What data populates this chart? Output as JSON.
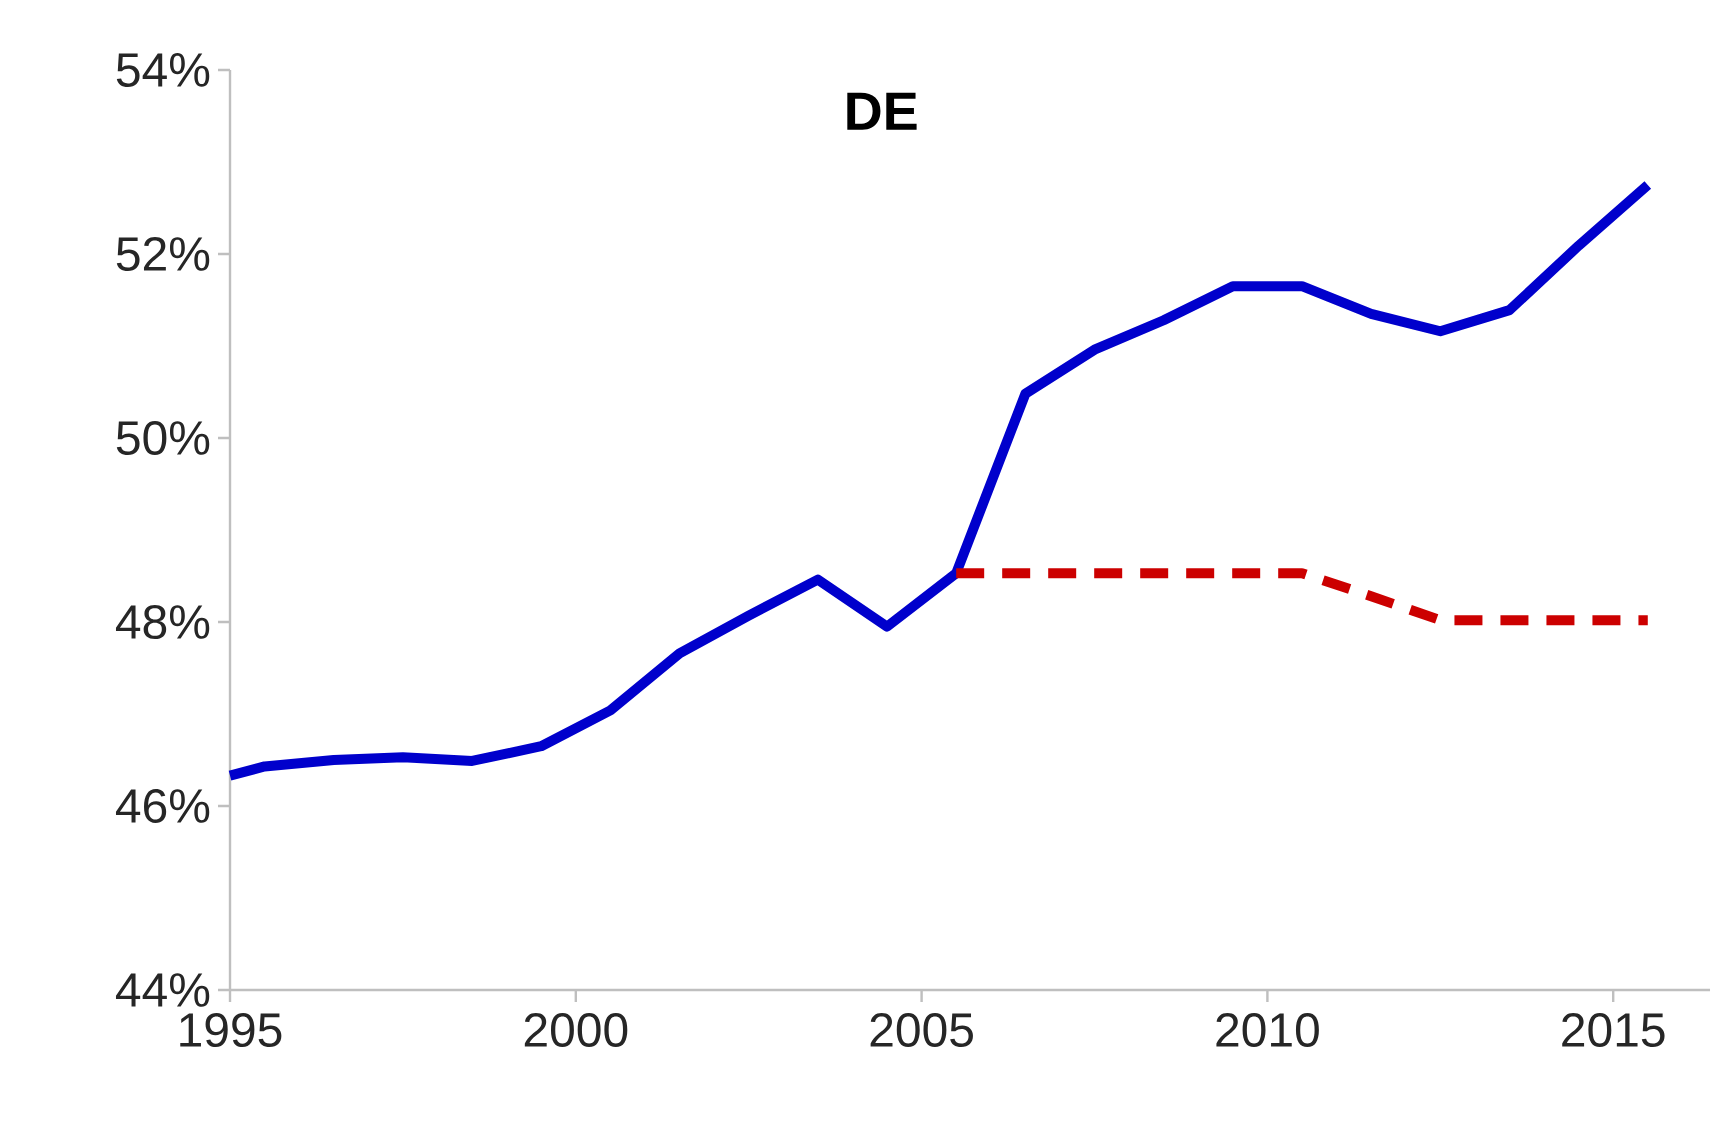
{
  "chart_data": {
    "type": "line",
    "title": "DE",
    "xlim": [
      1995,
      2016.4
    ],
    "xticks": [
      1995,
      2000,
      2005,
      2010,
      2015
    ],
    "ylim": [
      44,
      54
    ],
    "yticks": [
      {
        "value": 44,
        "label": "44%"
      },
      {
        "value": 46,
        "label": "46%"
      },
      {
        "value": 48,
        "label": "48%"
      },
      {
        "value": 50,
        "label": "50%"
      },
      {
        "value": 52,
        "label": "52%"
      },
      {
        "value": 54,
        "label": "54%"
      }
    ],
    "grid": false,
    "legend": false,
    "marker": "none",
    "series": [
      {
        "color": "#0000cc",
        "line_style": "solid",
        "x": [
          1995,
          1995.5,
          1996.5,
          1997.5,
          1998.5,
          1999.5,
          2000.5,
          2001.5,
          2002.5,
          2003.5,
          2004.5,
          2005.5,
          2006.5,
          2007.5,
          2008.5,
          2009.5,
          2010.5,
          2011.5,
          2012.5,
          2013.5,
          2014.5,
          2015.5
        ],
        "values": [
          46.33,
          46.43,
          46.5,
          46.53,
          46.49,
          46.65,
          47.04,
          47.66,
          48.07,
          48.46,
          47.95,
          48.53,
          50.48,
          50.96,
          51.28,
          51.65,
          51.65,
          51.35,
          51.16,
          51.39,
          52.09,
          52.75
        ]
      },
      {
        "color": "#cc0000",
        "line_style": "dashed",
        "x": [
          2005.5,
          2006.5,
          2007.5,
          2008.5,
          2009.5,
          2010.5,
          2011.5,
          2012.5,
          2013.5,
          2014.5,
          2015.5
        ],
        "values": [
          48.53,
          48.53,
          48.53,
          48.53,
          48.53,
          48.53,
          48.28,
          48.02,
          48.02,
          48.02,
          48.02
        ]
      }
    ]
  }
}
